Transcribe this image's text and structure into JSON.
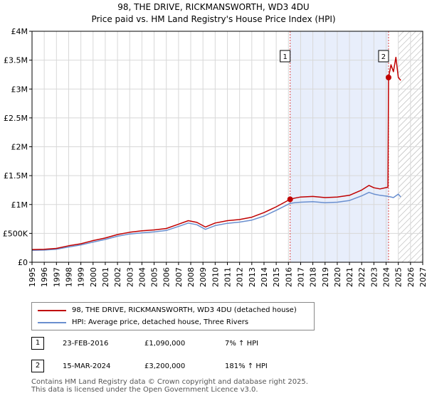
{
  "title": "98, THE DRIVE, RICKMANSWORTH, WD3 4DU",
  "subtitle": "Price paid vs. HM Land Registry's House Price Index (HPI)",
  "colors": {
    "price_line": "#c00000",
    "hpi_line": "#6a8fcf",
    "shade": "#e8eefb",
    "grid": "#d8d8d8",
    "marker_line": "#dd4444"
  },
  "legend": {
    "price_label": "98, THE DRIVE, RICKMANSWORTH, WD3 4DU (detached house)",
    "hpi_label": "HPI: Average price, detached house, Three Rivers"
  },
  "transactions": [
    {
      "num": "1",
      "date": "23-FEB-2016",
      "price": "£1,090,000",
      "hpi_change": "7% ↑ HPI"
    },
    {
      "num": "2",
      "date": "15-MAR-2024",
      "price": "£3,200,000",
      "hpi_change": "181% ↑ HPI"
    }
  ],
  "footer": {
    "line1": "Contains HM Land Registry data © Crown copyright and database right 2025.",
    "line2": "This data is licensed under the Open Government Licence v3.0."
  },
  "chart_data": {
    "type": "line",
    "xlim": [
      1995,
      2027
    ],
    "ylim": [
      0,
      4000000
    ],
    "x_ticks": [
      "1995",
      "1996",
      "1997",
      "1998",
      "1999",
      "2000",
      "2001",
      "2002",
      "2003",
      "2004",
      "2005",
      "2006",
      "2007",
      "2008",
      "2009",
      "2010",
      "2011",
      "2012",
      "2013",
      "2014",
      "2015",
      "2016",
      "2017",
      "2018",
      "2019",
      "2020",
      "2021",
      "2022",
      "2023",
      "2024",
      "2025",
      "2026",
      "2027"
    ],
    "y_ticks": [
      {
        "value": 0,
        "label": "£0"
      },
      {
        "value": 500000,
        "label": "£500K"
      },
      {
        "value": 1000000,
        "label": "£1M"
      },
      {
        "value": 1500000,
        "label": "£1.5M"
      },
      {
        "value": 2000000,
        "label": "£2M"
      },
      {
        "value": 2500000,
        "label": "£2.5M"
      },
      {
        "value": 3000000,
        "label": "£3M"
      },
      {
        "value": 3500000,
        "label": "£3.5M"
      },
      {
        "value": 4000000,
        "label": "£4M"
      }
    ],
    "grid": true,
    "shaded_range": [
      2016.14,
      2024.2
    ],
    "future_hatch_from": 2025.0,
    "sale_markers": [
      {
        "label": "1",
        "x": 2016.14,
        "y": 1090000
      },
      {
        "label": "2",
        "x": 2024.2,
        "y": 3200000
      }
    ],
    "series": [
      {
        "name": "98, THE DRIVE, RICKMANSWORTH, WD3 4DU (detached house)",
        "x": [
          1995.0,
          1996.0,
          1997.0,
          1998.0,
          1999.0,
          2000.0,
          2001.0,
          2002.0,
          2003.0,
          2004.0,
          2005.0,
          2006.0,
          2007.0,
          2007.8,
          2008.5,
          2009.2,
          2010.0,
          2011.0,
          2012.0,
          2013.0,
          2014.0,
          2015.0,
          2016.14,
          2016.5,
          2017.0,
          2018.0,
          2019.0,
          2020.0,
          2021.0,
          2022.0,
          2022.6,
          2023.0,
          2023.5,
          2024.15,
          2024.2,
          2024.4,
          2024.6,
          2024.8,
          2025.0,
          2025.2
        ],
        "y": [
          220000,
          225000,
          240000,
          285000,
          320000,
          375000,
          420000,
          480000,
          520000,
          545000,
          560000,
          585000,
          660000,
          720000,
          690000,
          610000,
          680000,
          720000,
          740000,
          780000,
          860000,
          960000,
          1090000,
          1110000,
          1130000,
          1140000,
          1120000,
          1130000,
          1160000,
          1250000,
          1330000,
          1290000,
          1270000,
          1300000,
          3200000,
          3420000,
          3300000,
          3550000,
          3200000,
          3150000
        ]
      },
      {
        "name": "HPI: Average price, detached house, Three Rivers",
        "x": [
          1995.0,
          1996.0,
          1997.0,
          1998.0,
          1999.0,
          2000.0,
          2001.0,
          2002.0,
          2003.0,
          2004.0,
          2005.0,
          2006.0,
          2007.0,
          2007.8,
          2008.5,
          2009.2,
          2010.0,
          2011.0,
          2012.0,
          2013.0,
          2014.0,
          2015.0,
          2016.14,
          2016.5,
          2017.0,
          2018.0,
          2019.0,
          2020.0,
          2021.0,
          2022.0,
          2022.6,
          2023.0,
          2023.5,
          2024.2,
          2024.6,
          2025.0,
          2025.2
        ],
        "y": [
          205000,
          210000,
          225000,
          265000,
          300000,
          350000,
          395000,
          450000,
          490000,
          510000,
          525000,
          550000,
          620000,
          680000,
          650000,
          570000,
          635000,
          675000,
          695000,
          730000,
          800000,
          900000,
          1020000,
          1030000,
          1040000,
          1050000,
          1030000,
          1040000,
          1070000,
          1150000,
          1210000,
          1180000,
          1160000,
          1140000,
          1120000,
          1180000,
          1130000
        ]
      }
    ]
  }
}
